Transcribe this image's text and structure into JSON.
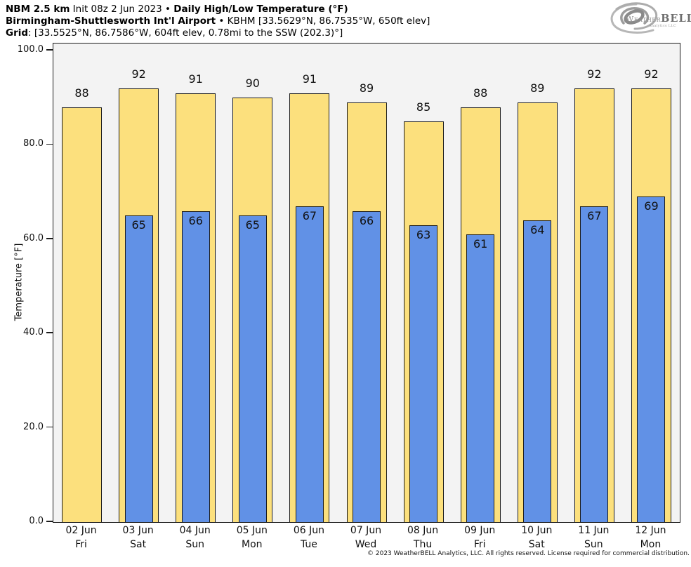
{
  "header": {
    "l1a": "NBM 2.5 km",
    "l1b": " Init 08z 2 Jun 2023 • ",
    "l1c": "Daily High/Low Temperature (°F)",
    "l2a": "Birmingham-Shuttlesworth Int'l Airport",
    "l2b": " • KBHM [33.5629°N, 86.7535°W, 650ft elev]",
    "l3a": "Grid",
    "l3b": ": [33.5525°N, 86.7586°W, 604ft elev, 0.78mi to the SSW (202.3)°]"
  },
  "logo": {
    "weather": "Weather",
    "bell": "BELL",
    "sub": "Analytics LLC"
  },
  "footer": {
    "text": "© 2023 WeatherBELL Analytics, LLC. All rights reserved. License required for commercial distribution."
  },
  "chart_data": {
    "type": "bar",
    "title": "NBM 2.5 km Init 08z 2 Jun 2023 • Daily High/Low Temperature (°F)",
    "subtitle": "Birmingham-Shuttlesworth Int'l Airport • KBHM [33.5629°N, 86.7535°W, 650ft elev]",
    "grid_note": "Grid: [33.5525°N, 86.7586°W, 604ft elev, 0.78mi to the SSW (202.3)°]",
    "xlabel": "",
    "ylabel": "Temperature [°F]",
    "ylim": [
      0,
      101.5
    ],
    "yticks": [
      0,
      20,
      40,
      60,
      80,
      100
    ],
    "ytick_labels": [
      "0.0",
      "20.0",
      "40.0",
      "60.0",
      "80.0",
      "100.0"
    ],
    "grid": "off",
    "legend": "none",
    "plot_bg_color": "#F3F3F3",
    "bar_border_color": "#1C1C1C",
    "categories": [
      {
        "date": "02 Jun",
        "day": "Fri"
      },
      {
        "date": "03 Jun",
        "day": "Sat"
      },
      {
        "date": "04 Jun",
        "day": "Sun"
      },
      {
        "date": "05 Jun",
        "day": "Mon"
      },
      {
        "date": "06 Jun",
        "day": "Tue"
      },
      {
        "date": "07 Jun",
        "day": "Wed"
      },
      {
        "date": "08 Jun",
        "day": "Thu"
      },
      {
        "date": "09 Jun",
        "day": "Fri"
      },
      {
        "date": "10 Jun",
        "day": "Sat"
      },
      {
        "date": "11 Jun",
        "day": "Sun"
      },
      {
        "date": "12 Jun",
        "day": "Mon"
      }
    ],
    "series": [
      {
        "name": "Daily High (°F)",
        "color": "#FCE07D",
        "values": [
          88,
          92,
          91,
          90,
          91,
          89,
          85,
          88,
          89,
          92,
          92
        ]
      },
      {
        "name": "Daily Low (°F)",
        "color": "#6191E6",
        "values": [
          null,
          65,
          66,
          65,
          67,
          66,
          63,
          61,
          64,
          67,
          69
        ]
      }
    ]
  }
}
